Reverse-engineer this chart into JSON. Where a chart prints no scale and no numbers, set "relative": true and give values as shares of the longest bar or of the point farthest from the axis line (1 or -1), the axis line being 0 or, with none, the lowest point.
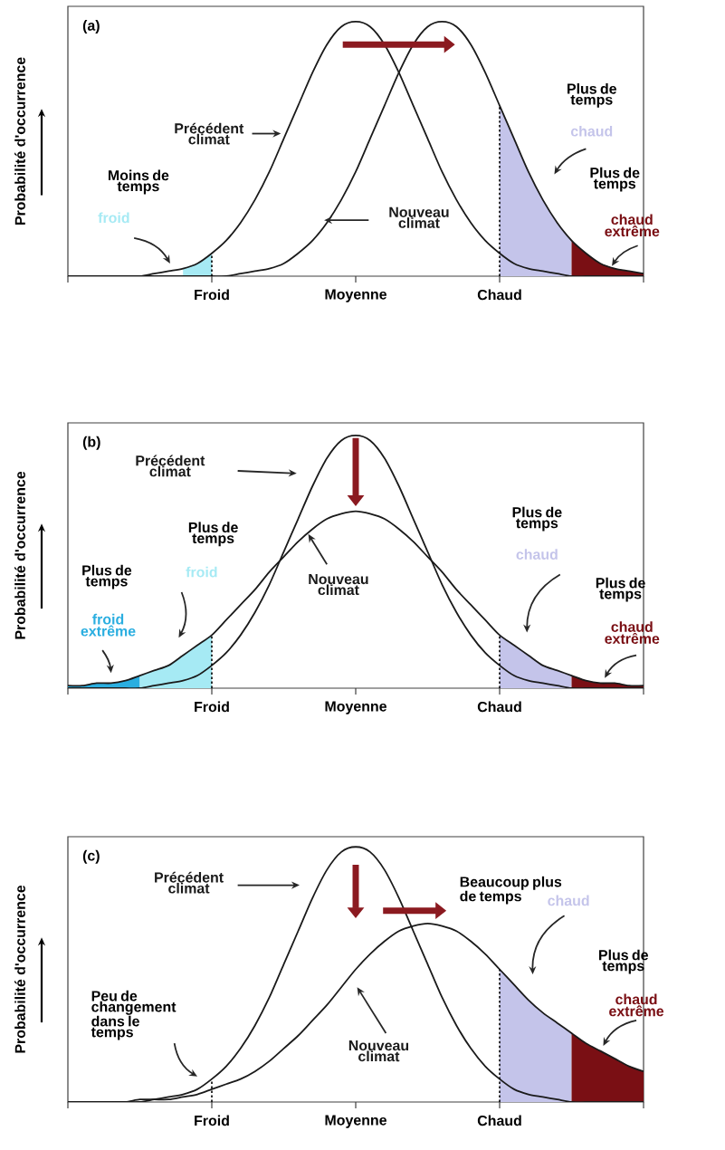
{
  "chart_data": [
    {
      "type": "line",
      "relative": true,
      "title": "(a)",
      "ylabel": "Probabilité d'occurrence",
      "tick_labels": "x",
      "categories": [
        null,
        null,
        null,
        null,
        null,
        null,
        null,
        null,
        null,
        null,
        "Froid",
        null,
        null,
        null,
        null,
        null,
        null,
        null,
        null,
        null,
        "Moyenne",
        null,
        null,
        null,
        null,
        null,
        null,
        null,
        null,
        null,
        "Chaud",
        null,
        null,
        null,
        null,
        null,
        null,
        null,
        null,
        null,
        null
      ],
      "annotations": [
        "Moins de temps",
        "Plus de temps",
        "Plus de temps"
      ],
      "ref_lines": [
        {
          "axis": "x",
          "value": "Froid",
          "line_style": "dotted"
        },
        {
          "axis": "x",
          "value": "Chaud",
          "line_style": "dotted"
        }
      ],
      "series": [
        {
          "name": "Précédent climat",
          "color": "#1a1a1a",
          "values": [
            0,
            0,
            0,
            0,
            0,
            0,
            0.01,
            0.02,
            0.03,
            0.05,
            0.09,
            0.14,
            0.21,
            0.3,
            0.41,
            0.54,
            0.67,
            0.8,
            0.91,
            0.98,
            1,
            0.98,
            0.91,
            0.8,
            0.67,
            0.54,
            0.41,
            0.3,
            0.21,
            0.14,
            0.09,
            0.05,
            0.03,
            0.02,
            0.01,
            0,
            0,
            0,
            0,
            0,
            0
          ]
        },
        {
          "name": "Nouveau climat",
          "color": "#1a1a1a",
          "values": [
            0,
            0,
            0,
            0,
            0,
            0,
            0,
            0,
            0,
            0,
            0,
            0,
            0.01,
            0.02,
            0.03,
            0.05,
            0.09,
            0.14,
            0.21,
            0.3,
            0.41,
            0.54,
            0.67,
            0.8,
            0.91,
            0.98,
            1,
            0.98,
            0.91,
            0.8,
            0.67,
            0.54,
            0.41,
            0.3,
            0.21,
            0.14,
            0.09,
            0.05,
            0.03,
            0.02,
            0.01
          ]
        },
        {
          "type": "area",
          "name": "froid",
          "color": "#a6eaf4",
          "values": [
            null,
            null,
            null,
            null,
            null,
            null,
            null,
            null,
            0.03,
            0.05,
            0.09,
            null,
            null,
            null,
            null,
            null,
            null,
            null,
            null,
            null,
            null,
            null,
            null,
            null,
            null,
            null,
            null,
            null,
            null,
            null,
            null,
            null,
            null,
            null,
            null,
            null,
            null,
            null,
            null,
            null,
            null
          ]
        },
        {
          "type": "area",
          "name": "chaud",
          "color": "#c4c4ea",
          "values": [
            null,
            null,
            null,
            null,
            null,
            null,
            null,
            null,
            null,
            null,
            null,
            null,
            null,
            null,
            null,
            null,
            null,
            null,
            null,
            null,
            null,
            null,
            null,
            null,
            null,
            null,
            null,
            null,
            null,
            null,
            0.67,
            0.54,
            0.41,
            0.3,
            0.21,
            0.14,
            null,
            null,
            null,
            null,
            null
          ]
        },
        {
          "type": "area",
          "name": "chaud extrême",
          "color": "#7a0f14",
          "values": [
            null,
            null,
            null,
            null,
            null,
            null,
            null,
            null,
            null,
            null,
            null,
            null,
            null,
            null,
            null,
            null,
            null,
            null,
            null,
            null,
            null,
            null,
            null,
            null,
            null,
            null,
            null,
            null,
            null,
            null,
            null,
            null,
            null,
            null,
            null,
            0.14,
            0.09,
            0.05,
            0.03,
            0.02,
            0.01
          ]
        }
      ]
    },
    {
      "type": "line",
      "relative": true,
      "title": "(b)",
      "ylabel": "Probabilité d'occurrence",
      "tick_labels": "x",
      "categories": [
        null,
        null,
        null,
        null,
        null,
        null,
        null,
        null,
        null,
        null,
        "Froid",
        null,
        null,
        null,
        null,
        null,
        null,
        null,
        null,
        null,
        "Moyenne",
        null,
        null,
        null,
        null,
        null,
        null,
        null,
        null,
        null,
        "Chaud",
        null,
        null,
        null,
        null,
        null,
        null,
        null,
        null,
        null,
        null
      ],
      "annotations": [
        "Plus de temps",
        "Plus de temps",
        "Plus de temps",
        "Plus de temps"
      ],
      "ref_lines": [
        {
          "axis": "x",
          "value": "Froid",
          "line_style": "dotted"
        },
        {
          "axis": "x",
          "value": "Chaud",
          "line_style": "dotted"
        }
      ],
      "series": [
        {
          "name": "Précédent climat",
          "color": "#1a1a1a",
          "values": [
            0,
            0,
            0,
            0,
            0,
            0,
            0.01,
            0.02,
            0.03,
            0.05,
            0.09,
            0.14,
            0.21,
            0.3,
            0.41,
            0.54,
            0.67,
            0.8,
            0.91,
            0.98,
            1,
            0.98,
            0.91,
            0.8,
            0.67,
            0.54,
            0.41,
            0.3,
            0.21,
            0.14,
            0.09,
            0.05,
            0.03,
            0.02,
            0.01,
            0,
            0,
            0,
            0,
            0,
            0
          ]
        },
        {
          "name": "Nouveau climat",
          "color": "#1a1a1a",
          "values": [
            0.01,
            0.01,
            0.02,
            0.02,
            0.03,
            0.05,
            0.07,
            0.09,
            0.13,
            0.17,
            0.21,
            0.27,
            0.33,
            0.39,
            0.46,
            0.52,
            0.58,
            0.63,
            0.67,
            0.69,
            0.7,
            0.69,
            0.67,
            0.63,
            0.58,
            0.52,
            0.46,
            0.39,
            0.33,
            0.27,
            0.21,
            0.17,
            0.13,
            0.09,
            0.07,
            0.05,
            0.03,
            0.02,
            0.02,
            0.01,
            0.01
          ]
        },
        {
          "type": "area",
          "name": "froid extrême",
          "color": "#2aaee0",
          "values": [
            0.01,
            0.01,
            0.02,
            0.02,
            0.03,
            0.05,
            null,
            null,
            null,
            null,
            null,
            null,
            null,
            null,
            null,
            null,
            null,
            null,
            null,
            null,
            null,
            null,
            null,
            null,
            null,
            null,
            null,
            null,
            null,
            null,
            null,
            null,
            null,
            null,
            null,
            null,
            null,
            null,
            null,
            null,
            null
          ]
        },
        {
          "type": "area",
          "name": "froid",
          "color": "#a6eaf4",
          "values": [
            null,
            null,
            null,
            null,
            null,
            0.05,
            0.07,
            0.09,
            0.13,
            0.17,
            0.21,
            null,
            null,
            null,
            null,
            null,
            null,
            null,
            null,
            null,
            null,
            null,
            null,
            null,
            null,
            null,
            null,
            null,
            null,
            null,
            null,
            null,
            null,
            null,
            null,
            null,
            null,
            null,
            null,
            null,
            null
          ]
        },
        {
          "type": "area",
          "name": "chaud",
          "color": "#c4c4ea",
          "values": [
            null,
            null,
            null,
            null,
            null,
            null,
            null,
            null,
            null,
            null,
            null,
            null,
            null,
            null,
            null,
            null,
            null,
            null,
            null,
            null,
            null,
            null,
            null,
            null,
            null,
            null,
            null,
            null,
            null,
            null,
            0.21,
            0.17,
            0.13,
            0.09,
            0.07,
            0.05,
            null,
            null,
            null,
            null,
            null
          ]
        },
        {
          "type": "area",
          "name": "chaud extrême",
          "color": "#7a0f14",
          "values": [
            null,
            null,
            null,
            null,
            null,
            null,
            null,
            null,
            null,
            null,
            null,
            null,
            null,
            null,
            null,
            null,
            null,
            null,
            null,
            null,
            null,
            null,
            null,
            null,
            null,
            null,
            null,
            null,
            null,
            null,
            null,
            null,
            null,
            null,
            null,
            0.05,
            0.03,
            0.02,
            0.02,
            0.01,
            0.01
          ]
        }
      ]
    },
    {
      "type": "line",
      "relative": true,
      "title": "(c)",
      "ylabel": "Probabilité d'occurrence",
      "tick_labels": "x",
      "categories": [
        null,
        null,
        null,
        null,
        null,
        null,
        null,
        null,
        null,
        null,
        "Froid",
        null,
        null,
        null,
        null,
        null,
        null,
        null,
        null,
        null,
        "Moyenne",
        null,
        null,
        null,
        null,
        null,
        null,
        null,
        null,
        null,
        "Chaud",
        null,
        null,
        null,
        null,
        null,
        null,
        null,
        null,
        null,
        null
      ],
      "annotations": [
        "Beaucoup plus de temps",
        "Plus de temps",
        "Peu de changement dans le temps"
      ],
      "ref_lines": [
        {
          "axis": "x",
          "value": "Froid",
          "line_style": "dotted"
        },
        {
          "axis": "x",
          "value": "Chaud",
          "line_style": "dotted"
        }
      ],
      "series": [
        {
          "name": "Précédent climat",
          "color": "#1a1a1a",
          "values": [
            0,
            0,
            0,
            0,
            0,
            0,
            0.01,
            0.02,
            0.03,
            0.05,
            0.09,
            0.14,
            0.21,
            0.3,
            0.41,
            0.54,
            0.67,
            0.8,
            0.91,
            0.98,
            1,
            0.98,
            0.91,
            0.8,
            0.67,
            0.54,
            0.41,
            0.3,
            0.21,
            0.14,
            0.09,
            0.05,
            0.03,
            0.02,
            0.01,
            0,
            0,
            0,
            0,
            0,
            0
          ]
        },
        {
          "name": "Nouveau climat",
          "color": "#1a1a1a",
          "values": [
            0,
            0,
            0,
            0,
            0,
            0.01,
            0.01,
            0.01,
            0.02,
            0.03,
            0.05,
            0.07,
            0.09,
            0.12,
            0.16,
            0.21,
            0.26,
            0.32,
            0.38,
            0.45,
            0.52,
            0.58,
            0.63,
            0.67,
            0.69,
            0.7,
            0.69,
            0.67,
            0.63,
            0.58,
            0.52,
            0.46,
            0.4,
            0.35,
            0.31,
            0.27,
            0.23,
            0.2,
            0.17,
            0.14,
            0.12
          ]
        },
        {
          "type": "area",
          "name": "chaud",
          "color": "#c4c4ea",
          "values": [
            null,
            null,
            null,
            null,
            null,
            null,
            null,
            null,
            null,
            null,
            null,
            null,
            null,
            null,
            null,
            null,
            null,
            null,
            null,
            null,
            null,
            null,
            null,
            null,
            null,
            null,
            null,
            null,
            null,
            null,
            0.52,
            0.46,
            0.4,
            0.35,
            0.31,
            0.27,
            null,
            null,
            null,
            null,
            null
          ]
        },
        {
          "type": "area",
          "name": "chaud extrême",
          "color": "#7a0f14",
          "values": [
            null,
            null,
            null,
            null,
            null,
            null,
            null,
            null,
            null,
            null,
            null,
            null,
            null,
            null,
            null,
            null,
            null,
            null,
            null,
            null,
            null,
            null,
            null,
            null,
            null,
            null,
            null,
            null,
            null,
            null,
            null,
            null,
            null,
            null,
            null,
            0.27,
            0.23,
            0.2,
            0.17,
            0.14,
            0.12
          ]
        }
      ]
    }
  ]
}
